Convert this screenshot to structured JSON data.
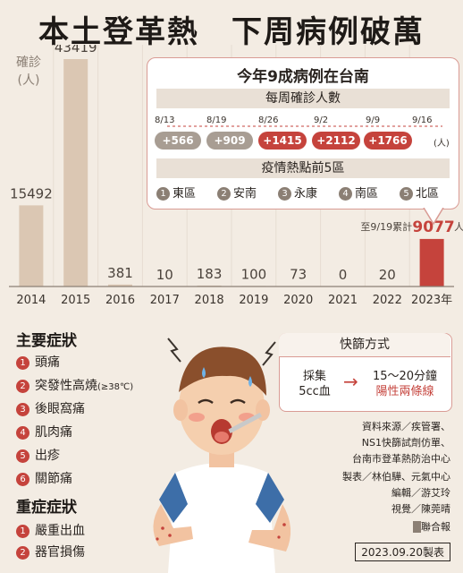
{
  "title": "本土登革熱　下周病例破萬",
  "chart_data": {
    "type": "bar",
    "ylabel": "確診(人)",
    "categories": [
      "2014",
      "2015",
      "2016",
      "2017",
      "2018",
      "2019",
      "2020",
      "2021",
      "2022",
      "2023年"
    ],
    "values": [
      15492,
      43419,
      381,
      10,
      183,
      100,
      73,
      0,
      20,
      9077
    ],
    "value_labels": [
      "15492",
      "43419",
      "381",
      "10",
      "183",
      "100",
      "73",
      "0",
      "20",
      "9077"
    ],
    "highlight_index": 9,
    "cumulative_note": "至9/19累計",
    "cumulative_unit": "人",
    "colors": {
      "bar": "#dbc7b3",
      "highlight": "#c5433c"
    }
  },
  "panel": {
    "title": "今年9成病例在台南",
    "weekly_header": "每周確診人數",
    "weeks": [
      {
        "date": "8/13",
        "value": "+566",
        "color": "#a89d93"
      },
      {
        "date": "8/19",
        "value": "+909",
        "color": "#a89d93"
      },
      {
        "date": "8/26",
        "value": "+1415",
        "color": "#c5433c"
      },
      {
        "date": "9/2",
        "value": "+2112",
        "color": "#c5433c"
      },
      {
        "date": "9/9",
        "value": "+1766",
        "color": "#c5433c"
      },
      {
        "date": "9/16",
        "value": "",
        "color": ""
      }
    ],
    "weekly_unit": "(人)",
    "hotspot_header": "疫情熱點前5區",
    "districts": [
      {
        "num": "1",
        "name": "東區"
      },
      {
        "num": "2",
        "name": "安南"
      },
      {
        "num": "3",
        "name": "永康"
      },
      {
        "num": "4",
        "name": "南區"
      },
      {
        "num": "5",
        "name": "北區"
      }
    ]
  },
  "symptoms": {
    "main_title": "主要症狀",
    "main": [
      {
        "num": "1",
        "text": "頭痛",
        "note": ""
      },
      {
        "num": "2",
        "text": "突發性高燒",
        "note": "(≥38℃)"
      },
      {
        "num": "3",
        "text": "後眼窩痛",
        "note": ""
      },
      {
        "num": "4",
        "text": "肌肉痛",
        "note": ""
      },
      {
        "num": "5",
        "text": "出疹",
        "note": ""
      },
      {
        "num": "6",
        "text": "關節痛",
        "note": ""
      }
    ],
    "severe_title": "重症症狀",
    "severe": [
      {
        "num": "1",
        "text": "嚴重出血"
      },
      {
        "num": "2",
        "text": "器官損傷"
      }
    ]
  },
  "test": {
    "title": "快篩方式",
    "collect_line1": "採集",
    "collect_line2": "5cc血",
    "arrow": "→",
    "time": "15～20分鐘",
    "result": "陽性兩條線"
  },
  "credits": {
    "source": "資料來源／疾管署、",
    "source2": "NS1快篩試劑仿單、",
    "source3": "台南市登革熱防治中心",
    "made_by": "製表／林伯驊、元氣中心",
    "editor": "編輯／游艾玲",
    "visual": "視覺／陳莞晴",
    "org": "聯合報",
    "date": "2023.09.20製表"
  }
}
